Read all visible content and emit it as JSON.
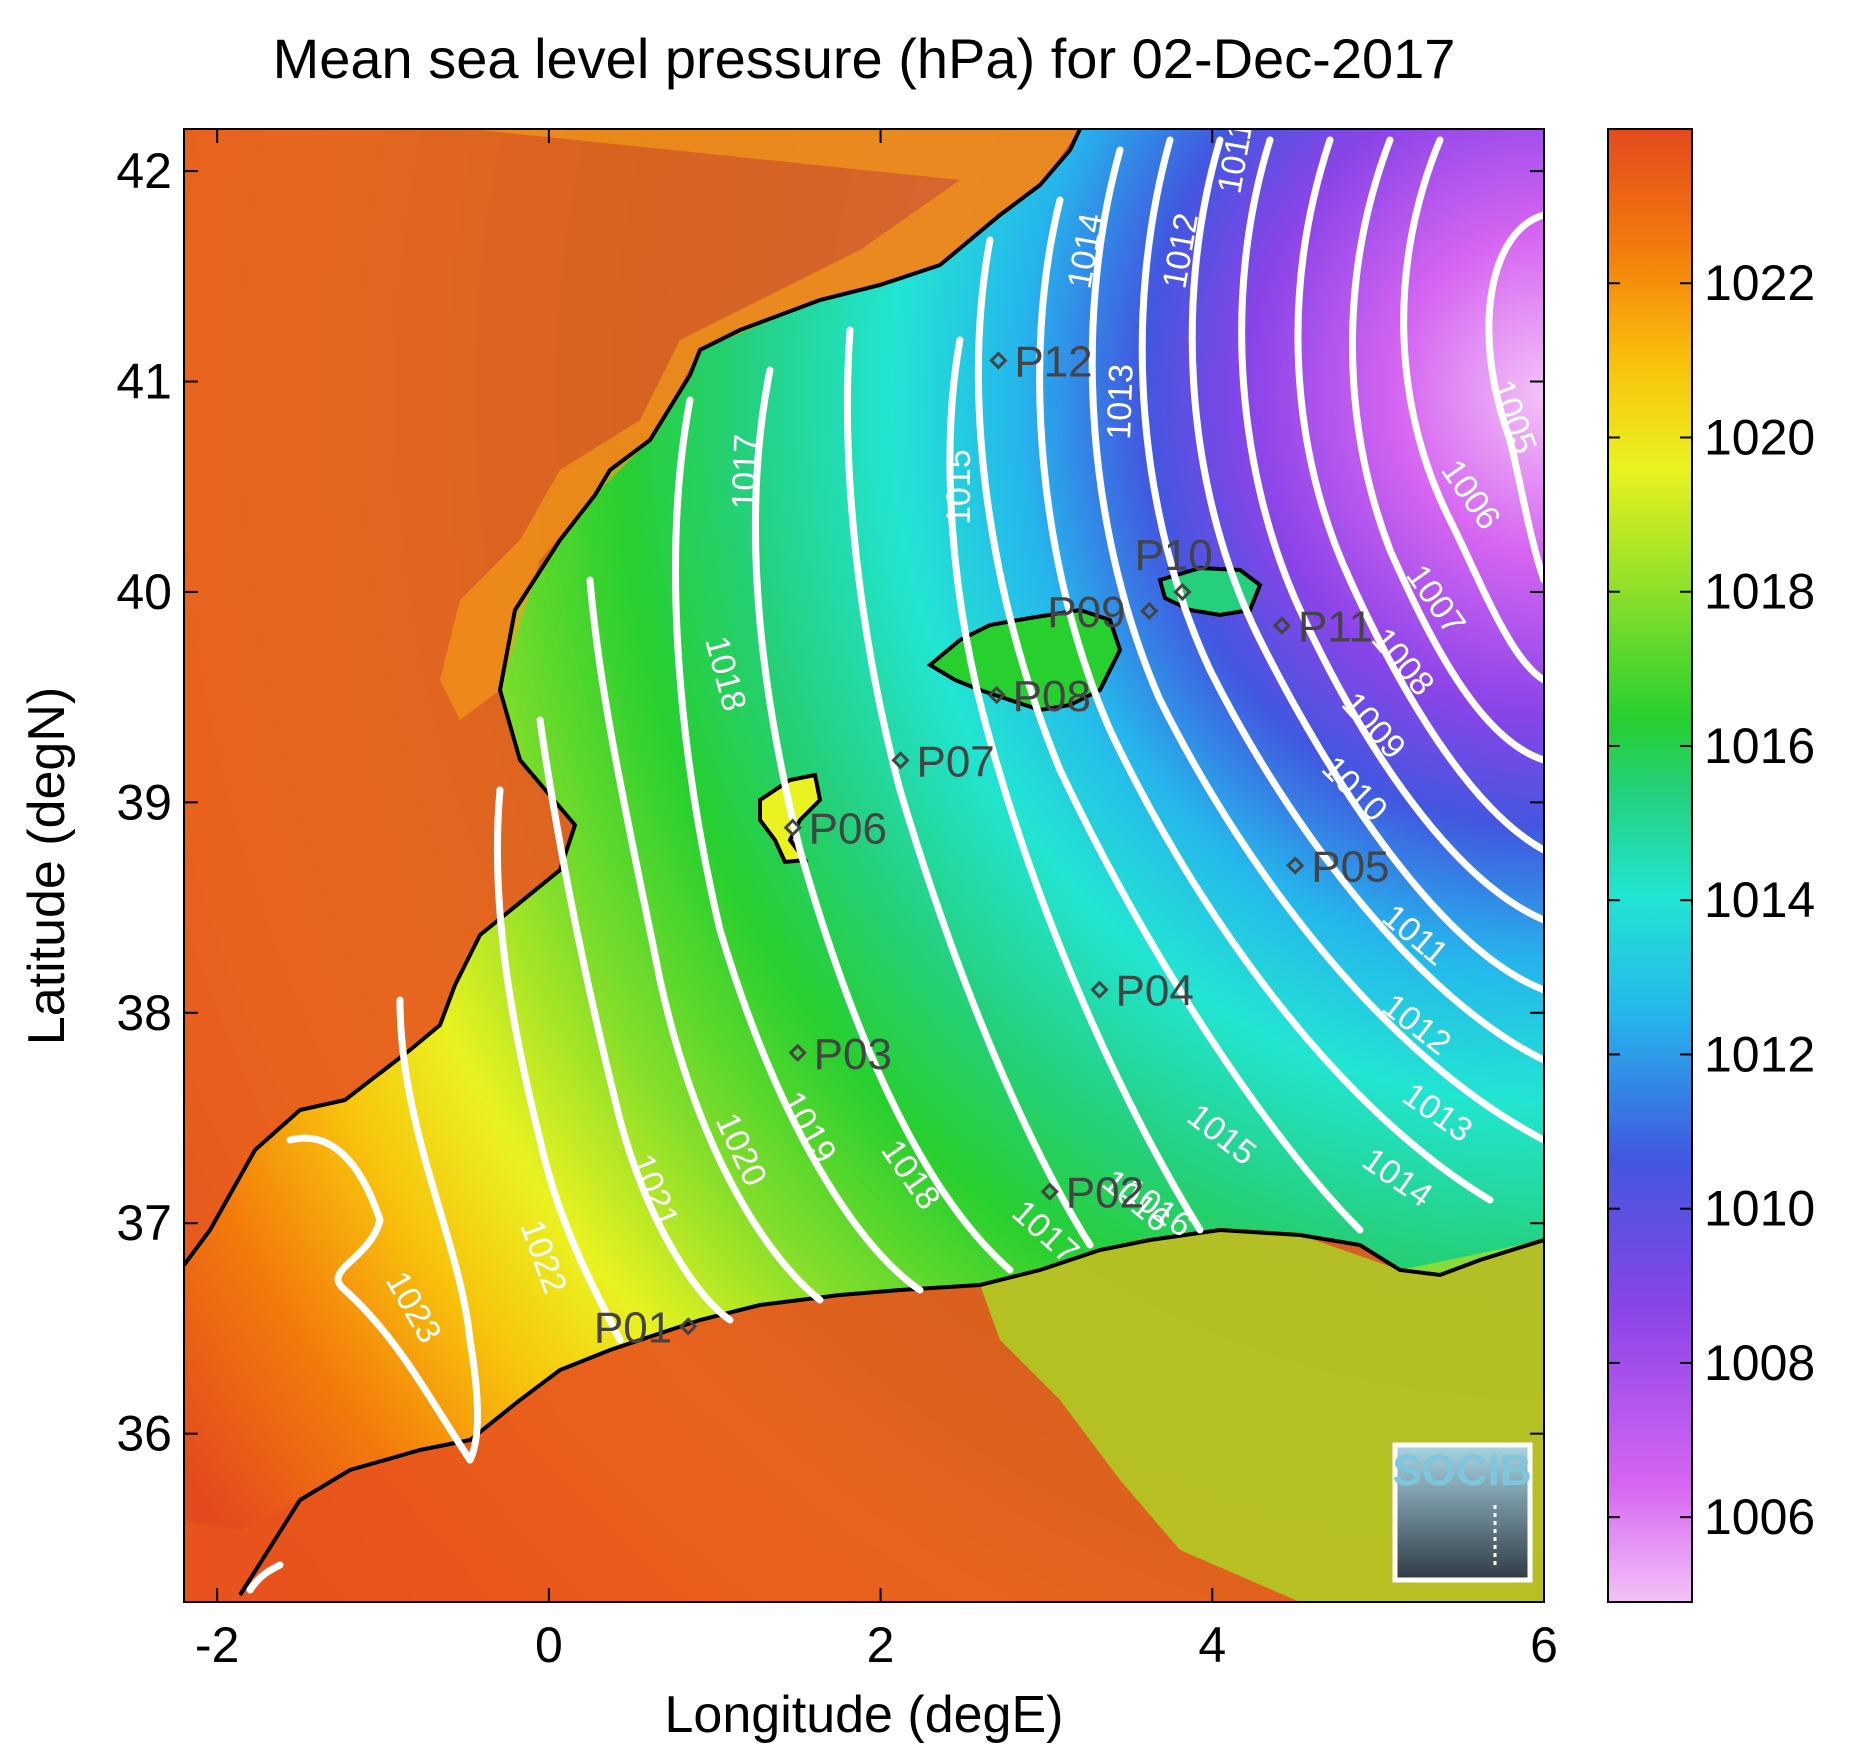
{
  "title": "Mean sea level pressure (hPa) for 02-Dec-2017",
  "x_axis": {
    "label": "Longitude (degE)",
    "range": [
      -2.2,
      6.0
    ],
    "ticks": [
      {
        "value": -2,
        "label": "-2"
      },
      {
        "value": 0,
        "label": "0"
      },
      {
        "value": 2,
        "label": "2"
      },
      {
        "value": 4,
        "label": "4"
      },
      {
        "value": 6,
        "label": "6"
      }
    ]
  },
  "y_axis": {
    "label": "Latitude (degN)",
    "range": [
      35.2,
      42.2
    ],
    "ticks": [
      {
        "value": 36,
        "label": "36"
      },
      {
        "value": 37,
        "label": "37"
      },
      {
        "value": 38,
        "label": "38"
      },
      {
        "value": 39,
        "label": "39"
      },
      {
        "value": 40,
        "label": "40"
      },
      {
        "value": 41,
        "label": "41"
      },
      {
        "value": 42,
        "label": "42"
      }
    ]
  },
  "colorbar": {
    "range": [
      1004.9,
      1024.0
    ],
    "ticks": [
      {
        "value": 1006,
        "label": "1006"
      },
      {
        "value": 1008,
        "label": "1008"
      },
      {
        "value": 1010,
        "label": "1010"
      },
      {
        "value": 1012,
        "label": "1012"
      },
      {
        "value": 1014,
        "label": "1014"
      },
      {
        "value": 1016,
        "label": "1016"
      },
      {
        "value": 1018,
        "label": "1018"
      },
      {
        "value": 1020,
        "label": "1020"
      },
      {
        "value": 1022,
        "label": "1022"
      }
    ],
    "colors": [
      "#f3c2f7",
      "#d565f1",
      "#8a44e8",
      "#4257e0",
      "#25b6ec",
      "#22e5d2",
      "#24d07c",
      "#27cf2f",
      "#86de2a",
      "#eaf220",
      "#f8c20c",
      "#f37a0b",
      "#e34a1f"
    ]
  },
  "stations": [
    {
      "name": "P01",
      "lon": 0.84,
      "lat": 36.51
    },
    {
      "name": "P02",
      "lon": 3.02,
      "lat": 37.15
    },
    {
      "name": "P03",
      "lon": 1.5,
      "lat": 37.81
    },
    {
      "name": "P04",
      "lon": 3.32,
      "lat": 38.11
    },
    {
      "name": "P05",
      "lon": 4.5,
      "lat": 38.7
    },
    {
      "name": "P06",
      "lon": 1.47,
      "lat": 38.88
    },
    {
      "name": "P07",
      "lon": 2.12,
      "lat": 39.2
    },
    {
      "name": "P08",
      "lon": 2.7,
      "lat": 39.51
    },
    {
      "name": "P09",
      "lon": 3.62,
      "lat": 39.91
    },
    {
      "name": "P10",
      "lon": 3.82,
      "lat": 40.0
    },
    {
      "name": "P11",
      "lon": 4.42,
      "lat": 39.84
    },
    {
      "name": "P12",
      "lon": 2.71,
      "lat": 41.1
    }
  ],
  "contour_labels": [
    "1005",
    "1006",
    "1007",
    "1008",
    "1009",
    "1010",
    "1011",
    "1012",
    "1013",
    "1014",
    "1015",
    "1016",
    "1017",
    "1018",
    "1019",
    "1020",
    "1021",
    "1022",
    "1023",
    "1011",
    "1012",
    "1013",
    "1014",
    "1015",
    "1016",
    "1017",
    "1018"
  ],
  "logo": {
    "text": "SOCIB"
  }
}
